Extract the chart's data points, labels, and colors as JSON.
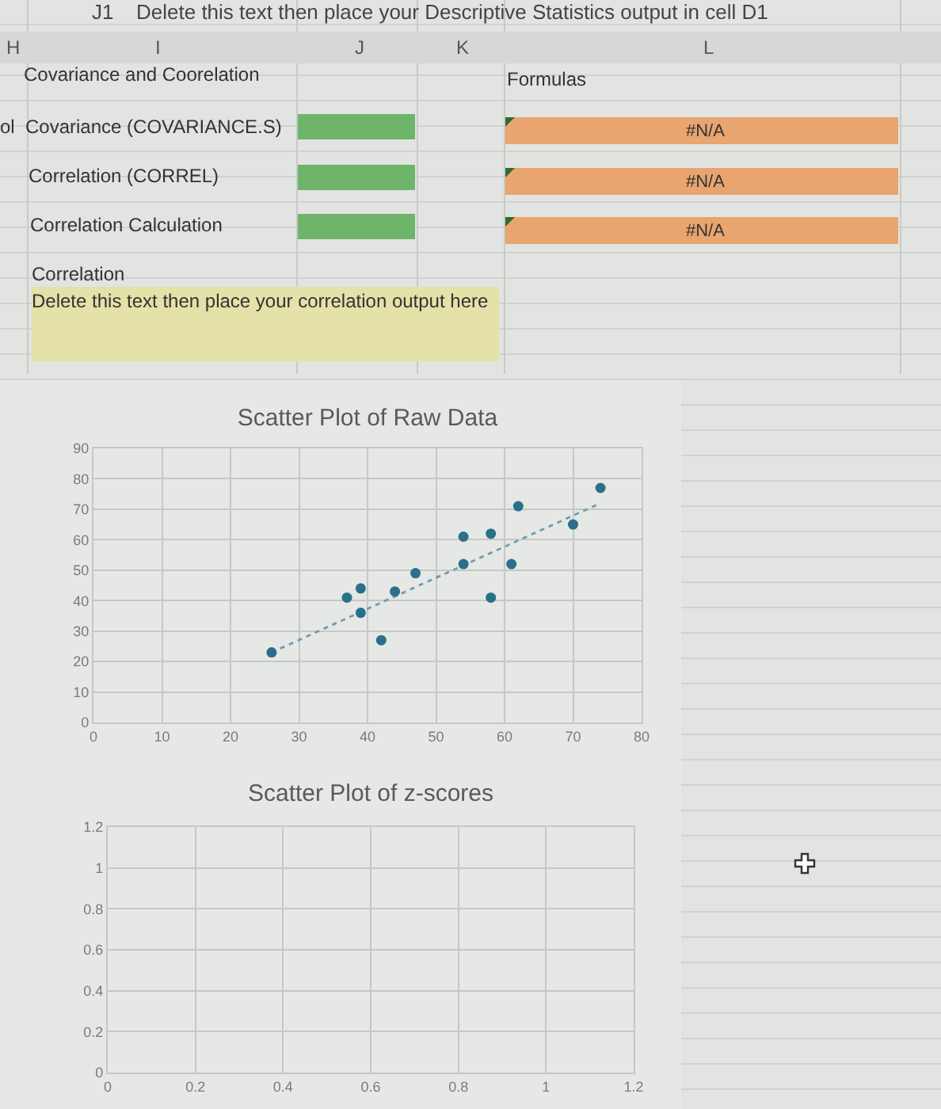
{
  "chart_data": [
    {
      "type": "other",
      "annotations": [
        "J1",
        "Delete this text then place your Descriptive Statistics output in cell D1",
        "H",
        "I",
        "J",
        "K",
        "L",
        "Covariance and Coorelation",
        "Formulas",
        "ol",
        "Covariance (COVARIANCE.S)",
        "#N/A",
        "Correlation (CORREL)",
        "#N/A",
        "Correlation Calculation",
        "#N/A",
        "Correlation",
        "Delete this text then place your correlation output here"
      ]
    },
    {
      "type": "scatter",
      "title": "Scatter Plot of Raw Data",
      "marker": "circle",
      "grid": true,
      "xlim": [
        0,
        80
      ],
      "xticks": [
        0,
        10,
        20,
        30,
        40,
        50,
        60,
        70,
        80
      ],
      "ylim": [
        0,
        90
      ],
      "yticks": [
        0,
        10,
        20,
        30,
        40,
        50,
        60,
        70,
        80,
        90
      ],
      "series": [
        {
          "color": "#2a6f8c",
          "x": [
            26,
            37,
            39,
            39,
            42,
            44,
            47,
            54,
            54,
            58,
            58,
            61,
            62,
            70,
            74
          ],
          "values": [
            23,
            41,
            44,
            36,
            27,
            43,
            49,
            61,
            52,
            62,
            41,
            52,
            71,
            65,
            77
          ]
        },
        {
          "type": "line",
          "color": "#6f9cb3",
          "marker": "none",
          "line_style": "dotted",
          "x": [
            26,
            74
          ],
          "values": [
            23,
            72
          ]
        }
      ]
    },
    {
      "type": "scatter",
      "title": "Scatter Plot of z-scores",
      "grid": true,
      "xlim": [
        0,
        1.2
      ],
      "xticks": [
        0,
        0.2,
        0.4,
        0.6,
        0.8,
        1,
        1.2
      ],
      "ylim": [
        0,
        1.2
      ],
      "yticks": [
        0,
        0.2,
        0.4,
        0.6,
        0.8,
        1,
        1.2
      ]
    }
  ]
}
